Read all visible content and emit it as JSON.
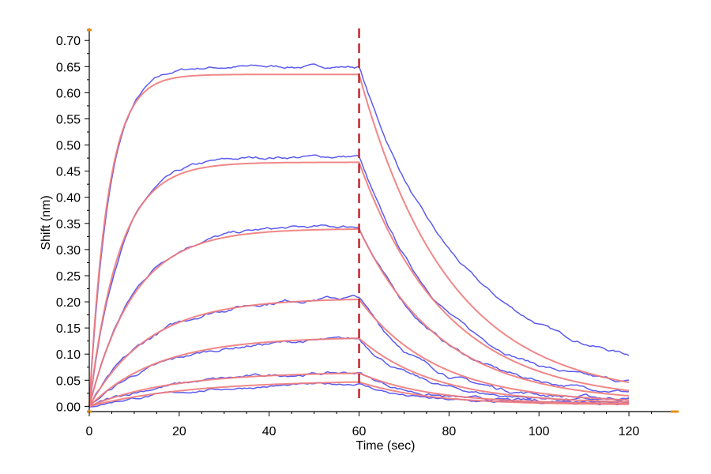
{
  "chart_data": {
    "type": "line",
    "title": "",
    "xlabel": "Time (sec)",
    "ylabel": "Shift (nm)",
    "xlim": [
      0,
      130
    ],
    "ylim": [
      -0.01,
      0.72
    ],
    "x_ticks": [
      0,
      20,
      40,
      60,
      80,
      100,
      120
    ],
    "y_ticks": [
      0.0,
      0.05,
      0.1,
      0.15,
      0.2,
      0.25,
      0.3,
      0.35,
      0.4,
      0.45,
      0.5,
      0.55,
      0.6,
      0.65,
      0.7
    ],
    "grid": false,
    "legend": "none",
    "vline_x": 60,
    "association_end": 60,
    "dissociation_end": 120,
    "colors": {
      "measured": "#5b5bf0",
      "fit": "#f07a7a",
      "vline": "#c0262f",
      "axis": "#000000",
      "corner_marks": "#e8900c"
    },
    "fit_curves": [
      {
        "plateau": 0.635,
        "k_on": 0.24,
        "k_off": 0.05,
        "end": 0.015
      },
      {
        "plateau": 0.467,
        "k_on": 0.15,
        "k_off": 0.052,
        "end": 0.01
      },
      {
        "plateau": 0.34,
        "k_on": 0.1,
        "k_off": 0.055,
        "end": 0.008
      },
      {
        "plateau": 0.207,
        "k_on": 0.075,
        "k_off": 0.058,
        "end": 0.006
      },
      {
        "plateau": 0.133,
        "k_on": 0.065,
        "k_off": 0.06,
        "end": 0.005
      },
      {
        "plateau": 0.066,
        "k_on": 0.055,
        "k_off": 0.062,
        "end": 0.004
      },
      {
        "plateau": 0.05,
        "k_on": 0.045,
        "k_off": 0.064,
        "end": 0.003
      }
    ],
    "measured_curves": [
      {
        "plateau": 0.65,
        "k_on": 0.22,
        "k_off": 0.045,
        "end": 0.06,
        "noise": 0.004
      },
      {
        "plateau": 0.478,
        "k_on": 0.14,
        "k_off": 0.055,
        "end": 0.03,
        "noise": 0.004
      },
      {
        "plateau": 0.345,
        "k_on": 0.1,
        "k_off": 0.06,
        "end": 0.02,
        "noise": 0.004
      },
      {
        "plateau": 0.212,
        "k_on": 0.07,
        "k_off": 0.07,
        "end": 0.012,
        "noise": 0.005
      },
      {
        "plateau": 0.132,
        "k_on": 0.06,
        "k_off": 0.075,
        "end": 0.01,
        "noise": 0.004
      },
      {
        "plateau": 0.068,
        "k_on": 0.05,
        "k_off": 0.085,
        "end": 0.008,
        "noise": 0.004
      },
      {
        "plateau": 0.048,
        "k_on": 0.04,
        "k_off": 0.09,
        "end": 0.006,
        "noise": 0.003
      }
    ]
  }
}
